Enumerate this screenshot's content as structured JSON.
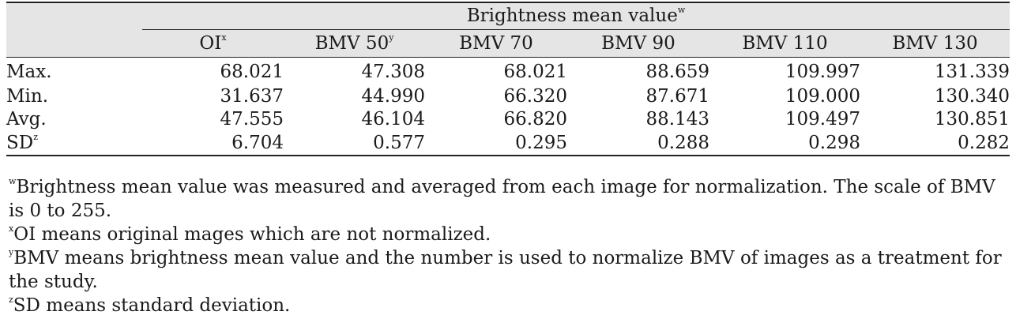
{
  "table": {
    "group_header": "Brightness mean value",
    "group_header_sup": "w",
    "columns": [
      {
        "label": "OI",
        "sup": "x"
      },
      {
        "label": "BMV 50",
        "sup": "y"
      },
      {
        "label": "BMV 70",
        "sup": ""
      },
      {
        "label": "BMV 90",
        "sup": ""
      },
      {
        "label": "BMV 110",
        "sup": ""
      },
      {
        "label": "BMV 130",
        "sup": ""
      }
    ],
    "rows": [
      {
        "label": "Max.",
        "sup": "",
        "values": [
          "68.021",
          "47.308",
          "68.021",
          "88.659",
          "109.997",
          "131.339"
        ]
      },
      {
        "label": "Min.",
        "sup": "",
        "values": [
          "31.637",
          "44.990",
          "66.320",
          "87.671",
          "109.000",
          "130.340"
        ]
      },
      {
        "label": "Avg.",
        "sup": "",
        "values": [
          "47.555",
          "46.104",
          "66.820",
          "88.143",
          "109.497",
          "130.851"
        ]
      },
      {
        "label": "SD",
        "sup": "z",
        "values": [
          "6.704",
          "0.577",
          "0.295",
          "0.288",
          "0.298",
          "0.282"
        ]
      }
    ]
  },
  "footnotes": [
    {
      "mark": "w",
      "text": "Brightness mean value was measured and averaged from each image for normalization. The scale of BMV is 0 to 255."
    },
    {
      "mark": "x",
      "text": "OI means original mages which are not normalized."
    },
    {
      "mark": "y",
      "text": "BMV means brightness mean value and the number is used to normalize BMV of images as a treatment for the study."
    },
    {
      "mark": "z",
      "text": "SD means standard deviation."
    }
  ]
}
